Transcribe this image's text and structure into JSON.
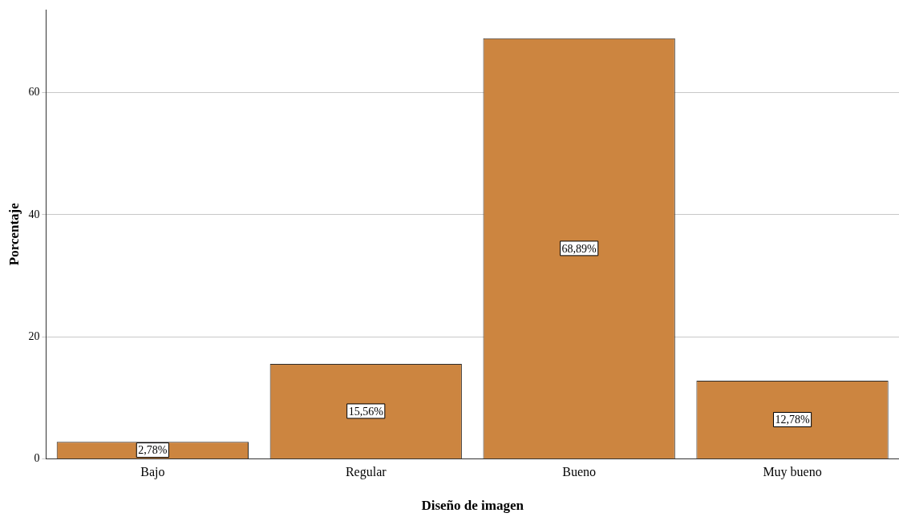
{
  "chart_data": {
    "type": "bar",
    "xlabel": "Diseño de imagen",
    "ylabel": "Porcentaje",
    "categories": [
      "Bajo",
      "Regular",
      "Bueno",
      "Muy bueno"
    ],
    "values": [
      2.78,
      15.56,
      68.89,
      12.78
    ],
    "value_labels": [
      "2,78%",
      "15,56%",
      "68,89%",
      "12,78%"
    ],
    "color": "#cc8540",
    "ylim": [
      0,
      73.6
    ],
    "yticks": [
      0,
      20,
      40,
      60
    ],
    "grid": "y",
    "legend": false
  }
}
